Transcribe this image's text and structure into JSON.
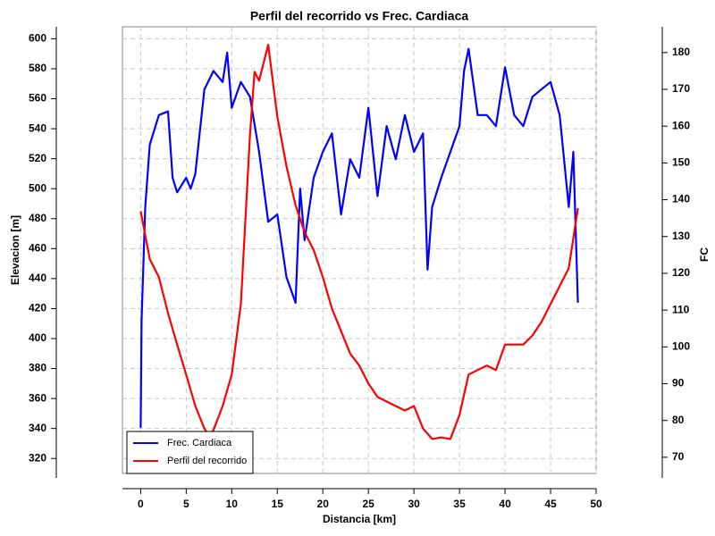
{
  "chart_data": {
    "type": "line",
    "title": "Perfil del recorrido vs Frec. Cardiaca",
    "x_label": "Distancia [km]",
    "y_label": "Elevacion [m]",
    "y2_label": "FC",
    "xlim": [
      -2,
      50
    ],
    "xticks": [
      0,
      5,
      10,
      15,
      20,
      25,
      30,
      35,
      40,
      45,
      50
    ],
    "ylim": [
      310,
      608
    ],
    "yticks": [
      320,
      340,
      360,
      380,
      400,
      420,
      440,
      460,
      480,
      500,
      520,
      540,
      560,
      580,
      600
    ],
    "y2lim": [
      65.6,
      187
    ],
    "y2ticks": [
      70,
      80,
      90,
      100,
      110,
      120,
      130,
      140,
      150,
      160,
      170,
      180
    ],
    "grid": true,
    "legend": "lower left",
    "series": [
      {
        "name": "Frec. Cardiaca",
        "color": "#0000ff",
        "axis": "y2",
        "x": [
          0,
          0.1,
          0.5,
          1,
          2,
          3,
          3.5,
          4,
          5,
          5.5,
          6,
          7,
          8,
          9,
          9.5,
          10,
          11,
          12,
          13,
          14,
          15,
          16,
          17,
          17.5,
          18,
          19,
          20,
          21,
          22,
          23,
          24,
          25,
          26,
          27,
          28,
          29,
          30,
          31,
          31.5,
          32,
          33,
          34,
          35,
          35.5,
          36,
          37,
          38,
          39,
          40,
          41,
          42,
          43,
          44,
          45,
          46,
          47,
          47.5,
          48
        ],
        "values": [
          78,
          107,
          138,
          155,
          163,
          164,
          146,
          142,
          146,
          143,
          147,
          170,
          175,
          172,
          180,
          165,
          172,
          168,
          153,
          134,
          136,
          119,
          112,
          143,
          129,
          146,
          153,
          158,
          136,
          151,
          146,
          165,
          141,
          160,
          151,
          163,
          153,
          158,
          121,
          138,
          146,
          153,
          160,
          175,
          181,
          163,
          163,
          160,
          176,
          163,
          160,
          168,
          170,
          172,
          163,
          138,
          153,
          112
        ]
      },
      {
        "name": "Perfil del recorrido",
        "color": "#ff0000",
        "axis": "y",
        "x": [
          0,
          1,
          2,
          3,
          4,
          5,
          6,
          7,
          7.5,
          8,
          9,
          10,
          11,
          12,
          12.5,
          13,
          14,
          15,
          16,
          17,
          18,
          19,
          20,
          21,
          22,
          23,
          24,
          25,
          26,
          27,
          28,
          29,
          30,
          31,
          32,
          33,
          34,
          35,
          36,
          37,
          38,
          39,
          40,
          41,
          42,
          43,
          44,
          45,
          46,
          47,
          48
        ],
        "values": [
          485,
          453,
          441,
          417,
          396,
          376,
          355,
          340,
          335,
          339,
          355,
          376,
          423,
          536,
          578,
          572,
          596,
          548,
          515,
          489,
          471,
          459,
          441,
          420,
          405,
          390,
          382,
          370,
          361,
          358,
          355,
          352,
          355,
          340,
          333,
          334,
          333,
          349,
          376,
          379,
          382,
          379,
          396,
          396,
          396,
          402,
          411,
          423,
          435,
          447,
          487
        ]
      }
    ]
  }
}
